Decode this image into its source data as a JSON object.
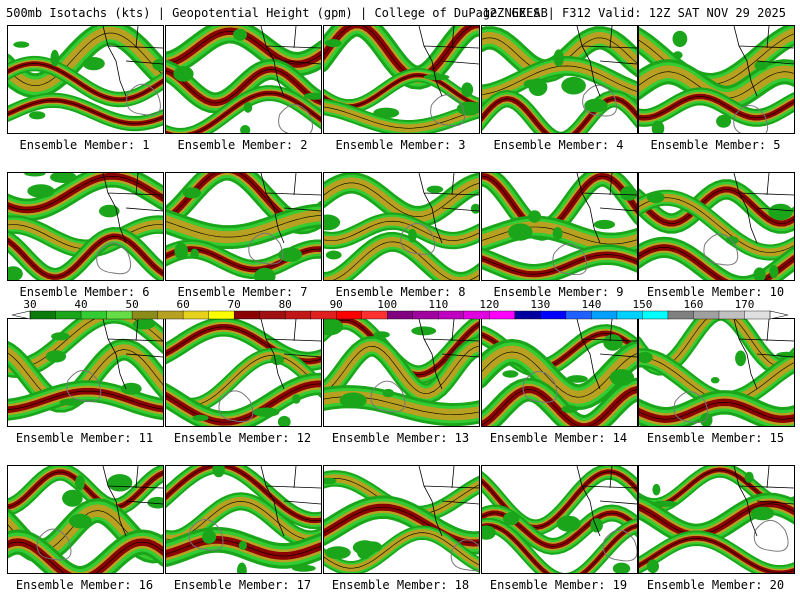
{
  "header": {
    "left_title": "500mb Isotachs (kts) | Geopotential Height (gpm) | College of DuPage NEXLAB",
    "right_title": "12Z GEFS | F312 Valid: 12Z SAT NOV 29 2025"
  },
  "members": [
    "Ensemble Member: 1",
    "Ensemble Member: 2",
    "Ensemble Member: 3",
    "Ensemble Member: 4",
    "Ensemble Member: 5",
    "Ensemble Member: 6",
    "Ensemble Member: 7",
    "Ensemble Member: 8",
    "Ensemble Member: 9",
    "Ensemble Member: 10",
    "Ensemble Member: 11",
    "Ensemble Member: 12",
    "Ensemble Member: 13",
    "Ensemble Member: 14",
    "Ensemble Member: 15",
    "Ensemble Member: 16",
    "Ensemble Member: 17",
    "Ensemble Member: 18",
    "Ensemble Member: 19",
    "Ensemble Member: 20"
  ],
  "colorbar": {
    "ticks": [
      "30",
      "40",
      "50",
      "60",
      "70",
      "80",
      "90",
      "100",
      "110",
      "120",
      "130",
      "140",
      "150",
      "160",
      "170"
    ],
    "colors": [
      "#0a7a0a",
      "#1aa51a",
      "#33cc33",
      "#66dd44",
      "#8c8c1a",
      "#b8a020",
      "#e6d21a",
      "#ffff00",
      "#8b0000",
      "#a01010",
      "#c01818",
      "#e01f1f",
      "#ff0000",
      "#ff3030",
      "#800080",
      "#a000a0",
      "#c000c0",
      "#e000e0",
      "#ff00ff",
      "#0000a0",
      "#0000ff",
      "#2060ff",
      "#00a0ff",
      "#00d0ff",
      "#00ffff",
      "#808080",
      "#a0a0a0",
      "#c0c0c0",
      "#e0e0e0"
    ]
  }
}
